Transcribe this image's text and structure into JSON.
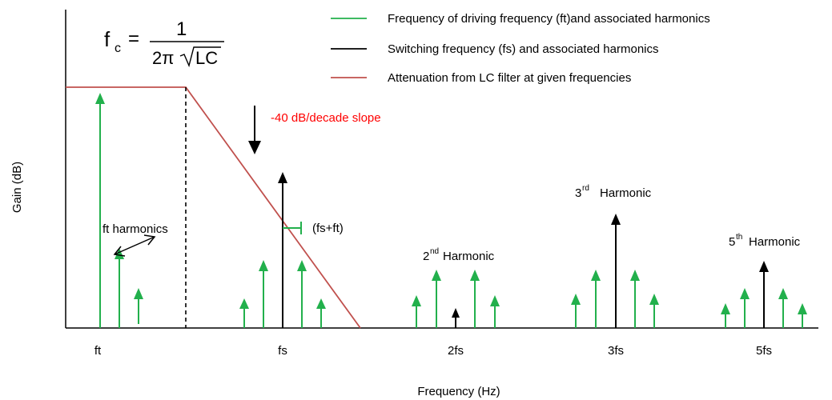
{
  "formula": {
    "lhs": "f",
    "lhs_sub": "c",
    "equals": "=",
    "numerator": "1",
    "denominator_prefix": "2π",
    "denominator_radicand": "LC"
  },
  "legend": [
    {
      "label": "Frequency of driving frequency (ft)and associated harmonics",
      "color": "#22b04c"
    },
    {
      "label": "Switching frequency (fs) and associated harmonics",
      "color": "#000000"
    },
    {
      "label": "Attenuation from LC filter at given frequencies",
      "color": "#c0504d"
    }
  ],
  "axes": {
    "xlabel": "Frequency (Hz)",
    "ylabel": "Gain (dB)",
    "ticks": [
      "ft",
      "fs",
      "2fs",
      "3fs",
      "5fs"
    ]
  },
  "annotations": {
    "slope": "-40 dB/decade slope",
    "ft_harmonics": "ft harmonics",
    "fs_plus_ft": "(fs+ft)",
    "second_harmonic": {
      "number": "2",
      "suffix": "nd",
      "word": "Harmonic"
    },
    "third_harmonic": {
      "number": "3",
      "suffix": "rd",
      "word": "Harmonic"
    },
    "fifth_harmonic": {
      "number": "5",
      "suffix": "th",
      "word": "Harmonic"
    }
  },
  "colors": {
    "driving": "#22b04c",
    "switching": "#000000",
    "filter": "#c0504d",
    "slope_text": "#ff0000",
    "axis": "#000000"
  }
}
